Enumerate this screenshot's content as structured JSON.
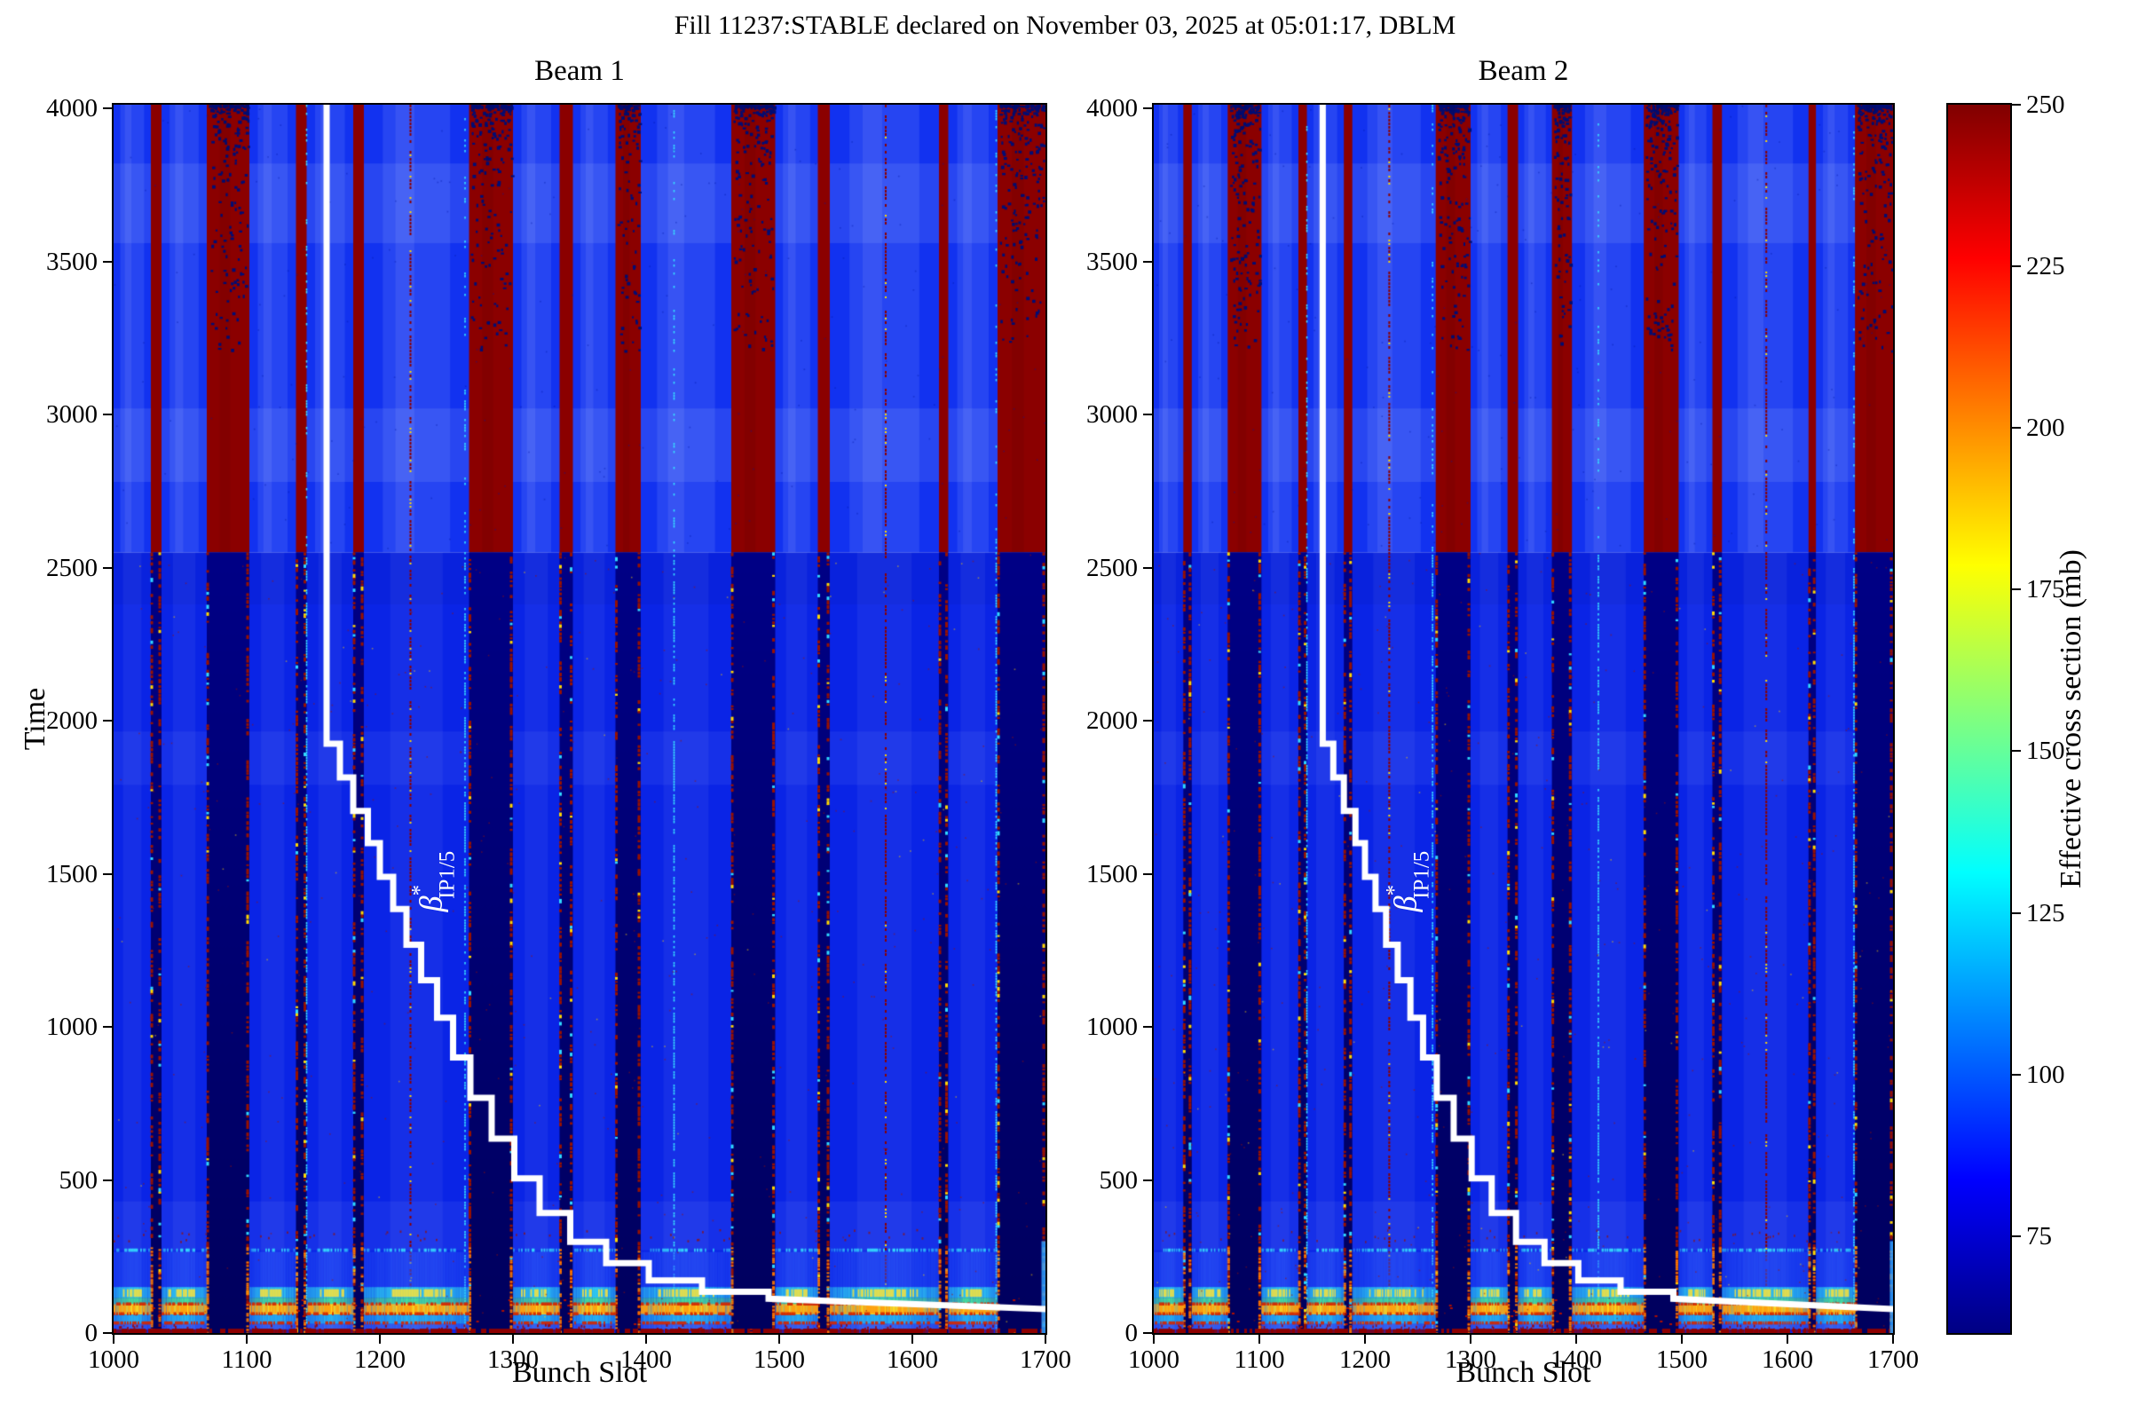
{
  "title": "Fill 11237:STABLE declared on November 03, 2025 at 05:01:17, DBLM",
  "panels": [
    {
      "title": "Beam 1"
    },
    {
      "title": "Beam 2"
    }
  ],
  "axes": {
    "x_label": "Bunch Slot",
    "y_label": "Time",
    "x_ticks": [
      1000,
      1100,
      1200,
      1300,
      1400,
      1500,
      1600,
      1700
    ],
    "y_ticks": [
      0,
      500,
      1000,
      1500,
      2000,
      2500,
      3000,
      3500,
      4000
    ],
    "x_range": [
      1000,
      1700
    ],
    "y_range": [
      0,
      4012
    ]
  },
  "colorbar": {
    "label": "Effective cross section (mb)",
    "ticks": [
      250,
      225,
      200,
      175,
      150,
      125,
      100,
      75
    ],
    "range": [
      60,
      250
    ],
    "colormap": "jet",
    "gradient_stops": [
      [
        "#800000",
        0
      ],
      [
        "#ff0000",
        0.125
      ],
      [
        "#ffff00",
        0.375
      ],
      [
        "#00ffff",
        0.625
      ],
      [
        "#0000ff",
        0.875
      ],
      [
        "#000083",
        1
      ]
    ]
  },
  "beta_label": {
    "base": "β",
    "sup": "*",
    "sub": "IP1/5"
  },
  "chart_data": {
    "type": "heatmap",
    "title": "Fill 11237:STABLE declared on November 03, 2025 at 05:01:17, DBLM",
    "panels": [
      "Beam 1",
      "Beam 2"
    ],
    "xlabel": "Bunch Slot",
    "ylabel": "Time",
    "x_range": [
      1000,
      1700
    ],
    "y_range": [
      0,
      4012
    ],
    "value_label": "Effective cross section (mb)",
    "value_range": [
      60,
      250
    ],
    "background_value_mb": 88,
    "saturated_above_time": 2550,
    "empty_slot_stripes": [
      [
        1028,
        1036
      ],
      [
        1070,
        1102
      ],
      [
        1137,
        1145
      ],
      [
        1180,
        1188
      ],
      [
        1267,
        1300
      ],
      [
        1335,
        1345
      ],
      [
        1377,
        1396
      ],
      [
        1464,
        1497
      ],
      [
        1529,
        1538
      ],
      [
        1620,
        1627
      ],
      [
        1664,
        1700
      ]
    ],
    "dashed_line_slots": [
      1223,
      1580
    ],
    "cyan_line_slots": [
      1145,
      1264,
      1421,
      1663
    ],
    "light_bands_time": [
      [
        2780,
        3020
      ],
      [
        3560,
        3820
      ],
      [
        1790,
        1965
      ],
      [
        270,
        430
      ]
    ],
    "hot_region_time_max": 280,
    "hot_bands": [
      {
        "t": [
          265,
          276
        ],
        "color": "#35e0ff",
        "alpha": 0.85,
        "dash": 0.45,
        "approx_mb": 125
      },
      {
        "t": [
          150,
          265
        ],
        "color": "#2d58f8",
        "alpha": 0.5,
        "dash": 1,
        "approx_mb": 95
      },
      {
        "t": [
          115,
          150
        ],
        "color": "#2ec8f0",
        "alpha": 0.95,
        "dash": 1,
        "approx_mb": 135
      },
      {
        "t": [
          95,
          115
        ],
        "color": "#49e09a",
        "alpha": 0.9,
        "dash": 1,
        "approx_mb": 155
      },
      {
        "t": [
          60,
          95
        ],
        "color": "#ffd81c",
        "alpha": 0.95,
        "dash": 1,
        "approx_mb": 195
      },
      {
        "t": [
          30,
          60
        ],
        "color": "#28b4f0",
        "alpha": 0.9,
        "dash": 1,
        "approx_mb": 130
      },
      {
        "t": [
          12,
          30
        ],
        "color": "#3a66f0",
        "alpha": 0.85,
        "dash": 1,
        "approx_mb": 105
      },
      {
        "t": [
          0,
          12
        ],
        "color": "#8e0000",
        "alpha": 0.95,
        "dash": 0.92,
        "approx_mb": 250
      }
    ],
    "beta_star_steps": [
      [
        1160,
        1925
      ],
      [
        1170,
        1815
      ],
      [
        1180,
        1705
      ],
      [
        1191,
        1600
      ],
      [
        1200,
        1490
      ],
      [
        1210,
        1385
      ],
      [
        1220,
        1268
      ],
      [
        1231,
        1152
      ],
      [
        1243,
        1030
      ],
      [
        1255,
        900
      ],
      [
        1268,
        768
      ],
      [
        1284,
        635
      ],
      [
        1301,
        505
      ],
      [
        1320,
        392
      ],
      [
        1343,
        298
      ],
      [
        1370,
        228
      ],
      [
        1402,
        172
      ],
      [
        1442,
        135
      ],
      [
        1492,
        112
      ]
    ],
    "beta_star_tail": [
      1700,
      78
    ],
    "beta_label_position": {
      "slot": 1240,
      "time": 1475
    }
  }
}
